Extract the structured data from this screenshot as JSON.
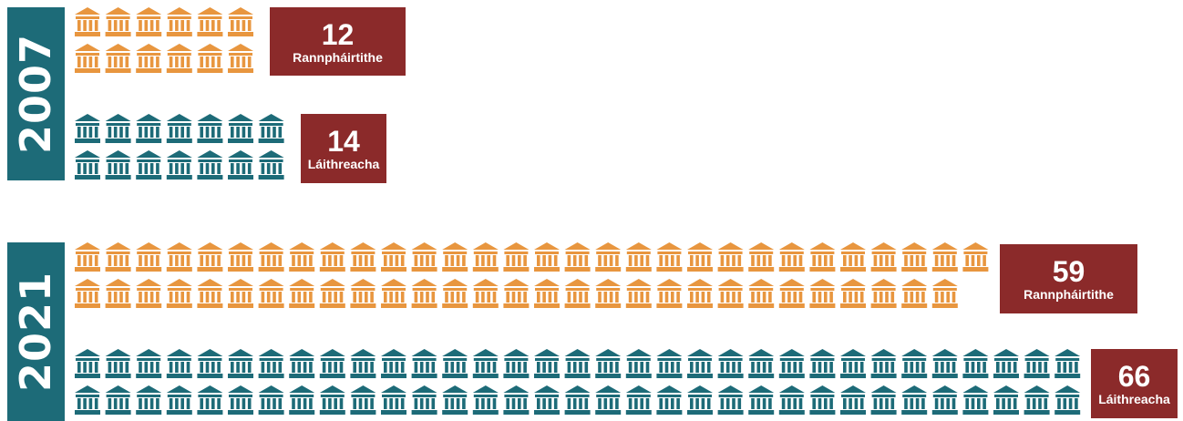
{
  "chart_data": {
    "type": "pictogram",
    "icon": "building-icon",
    "colors": {
      "participants": "#e8963f",
      "sites": "#1d6b78",
      "badge": "#8b2a2a",
      "year_bar": "#1d6b78"
    },
    "groups": [
      {
        "year": "2007",
        "rows": [
          {
            "series": "participants",
            "count": 12,
            "per_line": [
              6,
              6
            ],
            "value": "12",
            "label": "Rannpháirtithe"
          },
          {
            "series": "sites",
            "count": 14,
            "per_line": [
              7,
              7
            ],
            "value": "14",
            "label": "Láithreacha"
          }
        ]
      },
      {
        "year": "2021",
        "rows": [
          {
            "series": "participants",
            "count": 59,
            "per_line": [
              30,
              29
            ],
            "value": "59",
            "label": "Rannpháirtithe"
          },
          {
            "series": "sites",
            "count": 66,
            "per_line": [
              33,
              33
            ],
            "value": "66",
            "label": "Láithreacha"
          }
        ]
      }
    ]
  }
}
